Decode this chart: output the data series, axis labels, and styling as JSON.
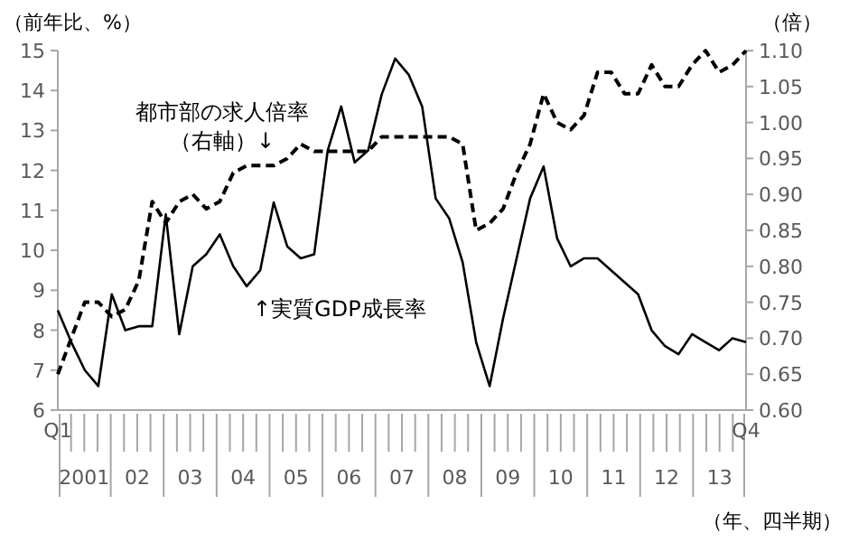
{
  "chart_data": {
    "type": "line",
    "ylabel": "（前年比、%）",
    "y2label": "（倍）",
    "xlabel": "（年、四半期）",
    "categories": [
      "Q1",
      null,
      null,
      null,
      null,
      null,
      null,
      null,
      null,
      null,
      null,
      null,
      null,
      null,
      null,
      null,
      null,
      null,
      null,
      null,
      null,
      null,
      null,
      null,
      null,
      null,
      null,
      null,
      null,
      null,
      null,
      null,
      null,
      null,
      null,
      null,
      null,
      null,
      null,
      null,
      null,
      null,
      null,
      null,
      null,
      null,
      null,
      null,
      null,
      null,
      null,
      "Q4"
    ],
    "annotations": [
      "2001",
      "02",
      "03",
      "04",
      "05",
      "06",
      "07",
      "08",
      "09",
      "10",
      "11",
      "12",
      "13"
    ],
    "ylim": [
      6,
      15
    ],
    "yticks": [
      6,
      7,
      8,
      9,
      10,
      11,
      12,
      13,
      14,
      15
    ],
    "y2lim": [
      0.6,
      1.1
    ],
    "y2ticks": [
      {
        "value": 0.6,
        "label": "0.60"
      },
      {
        "value": 0.65,
        "label": "0.65"
      },
      {
        "value": 0.7,
        "label": "0.70"
      },
      {
        "value": 0.75,
        "label": "0.75"
      },
      {
        "value": 0.8,
        "label": "0.80"
      },
      {
        "value": 0.85,
        "label": "0.85"
      },
      {
        "value": 0.9,
        "label": "0.90"
      },
      {
        "value": 0.95,
        "label": "0.95"
      },
      {
        "value": 1.0,
        "label": "1.00"
      },
      {
        "value": 1.05,
        "label": "1.05"
      },
      {
        "value": 1.1,
        "label": "1.10"
      }
    ],
    "marker": "none",
    "series": [
      {
        "name": "↑実質GDP成長率",
        "color": "#000000",
        "line_style": "solid",
        "values": [
          8.5,
          7.7,
          7.0,
          6.6,
          8.9,
          8.0,
          8.1,
          8.1,
          10.9,
          7.9,
          9.6,
          9.9,
          10.4,
          9.6,
          9.1,
          9.5,
          11.2,
          10.1,
          9.8,
          9.9,
          12.5,
          13.6,
          12.2,
          12.5,
          13.9,
          14.8,
          14.4,
          13.6,
          11.3,
          10.8,
          9.7,
          7.7,
          6.6,
          8.3,
          9.8,
          11.3,
          12.1,
          10.3,
          9.6,
          9.8,
          9.8,
          9.5,
          9.2,
          8.9,
          8.0,
          7.6,
          7.4,
          7.9,
          7.7,
          7.5,
          7.8,
          7.7
        ]
      },
      {
        "name": "都市部の求人倍率（右軸）↓",
        "color": "#000000",
        "line_style": "dashed",
        "axis": "y2",
        "values": [
          0.65,
          0.7,
          0.75,
          0.75,
          0.73,
          0.74,
          0.78,
          0.89,
          0.86,
          0.89,
          0.9,
          0.88,
          0.89,
          0.93,
          0.94,
          0.94,
          0.94,
          0.95,
          0.97,
          0.96,
          0.96,
          0.96,
          0.96,
          0.96,
          0.98,
          0.98,
          0.98,
          0.98,
          0.98,
          0.98,
          0.97,
          0.85,
          0.86,
          0.88,
          0.93,
          0.97,
          1.04,
          1.0,
          0.99,
          1.01,
          1.07,
          1.07,
          1.04,
          1.04,
          1.08,
          1.05,
          1.05,
          1.08,
          1.1,
          1.07,
          1.08,
          1.1
        ]
      }
    ]
  }
}
